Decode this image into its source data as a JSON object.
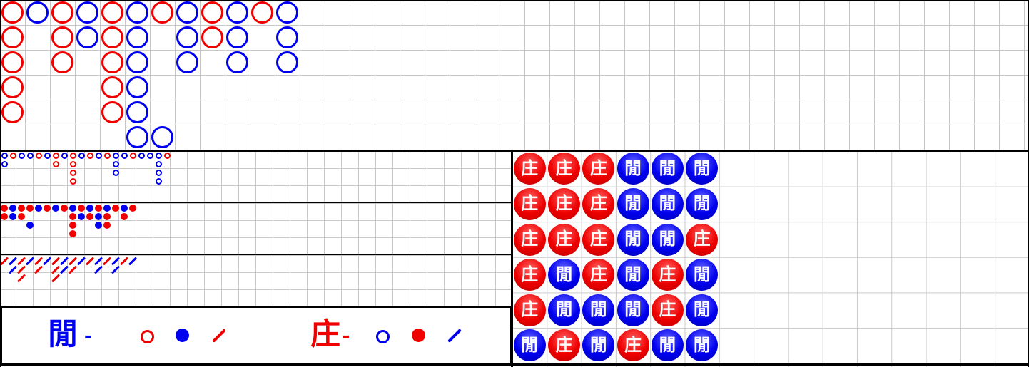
{
  "colors": {
    "red": "#f20000",
    "blue": "#0000f0",
    "bead_red_light": "#ff6060",
    "bead_red": "#ee0000",
    "bead_red_dark": "#bb0000",
    "bead_blue_light": "#6060ff",
    "bead_blue": "#0000ee",
    "bead_blue_dark": "#0000b0",
    "grid_line": "#c9c9c9",
    "border": "#000000",
    "background": "#ffffff"
  },
  "legend": {
    "player_label": "閒",
    "player_dash": "-",
    "banker_label": "庄",
    "banker_dash": "-"
  },
  "bead_plate": {
    "banker_char": "庄",
    "player_char": "閒",
    "rows": [
      [
        "B",
        "B",
        "B",
        "P",
        "P",
        "P"
      ],
      [
        "B",
        "B",
        "B",
        "P",
        "P",
        "P"
      ],
      [
        "B",
        "B",
        "B",
        "P",
        "P",
        "B"
      ],
      [
        "B",
        "P",
        "B",
        "P",
        "B",
        "P"
      ],
      [
        "B",
        "P",
        "P",
        "P",
        "B",
        "P"
      ],
      [
        "P",
        "B",
        "P",
        "B",
        "P",
        "P"
      ]
    ]
  },
  "big_road": {
    "cells": [
      [
        1,
        1,
        "R"
      ],
      [
        2,
        1,
        "R"
      ],
      [
        3,
        1,
        "R"
      ],
      [
        4,
        1,
        "R"
      ],
      [
        5,
        1,
        "R"
      ],
      [
        1,
        2,
        "B"
      ],
      [
        1,
        3,
        "R"
      ],
      [
        2,
        3,
        "R"
      ],
      [
        3,
        3,
        "R"
      ],
      [
        1,
        4,
        "B"
      ],
      [
        2,
        4,
        "B"
      ],
      [
        1,
        5,
        "R"
      ],
      [
        2,
        5,
        "R"
      ],
      [
        3,
        5,
        "R"
      ],
      [
        4,
        5,
        "R"
      ],
      [
        5,
        5,
        "R"
      ],
      [
        1,
        6,
        "B"
      ],
      [
        2,
        6,
        "B"
      ],
      [
        3,
        6,
        "B"
      ],
      [
        4,
        6,
        "B"
      ],
      [
        5,
        6,
        "B"
      ],
      [
        6,
        6,
        "B"
      ],
      [
        6,
        7,
        "B"
      ],
      [
        1,
        7,
        "R"
      ],
      [
        1,
        8,
        "B"
      ],
      [
        2,
        8,
        "B"
      ],
      [
        3,
        8,
        "B"
      ],
      [
        1,
        9,
        "R"
      ],
      [
        2,
        9,
        "R"
      ],
      [
        1,
        10,
        "B"
      ],
      [
        2,
        10,
        "B"
      ],
      [
        3,
        10,
        "B"
      ],
      [
        1,
        11,
        "R"
      ],
      [
        1,
        12,
        "B"
      ],
      [
        2,
        12,
        "B"
      ],
      [
        3,
        12,
        "B"
      ]
    ]
  },
  "big_eye_road": {
    "cells": [
      [
        1,
        1,
        "B"
      ],
      [
        2,
        1,
        "B"
      ],
      [
        1,
        2,
        "R"
      ],
      [
        1,
        3,
        "B"
      ],
      [
        1,
        4,
        "B"
      ],
      [
        1,
        5,
        "R"
      ],
      [
        1,
        6,
        "B"
      ],
      [
        1,
        7,
        "R"
      ],
      [
        2,
        7,
        "R"
      ],
      [
        1,
        8,
        "B"
      ],
      [
        1,
        9,
        "R"
      ],
      [
        2,
        9,
        "R"
      ],
      [
        3,
        9,
        "R"
      ],
      [
        4,
        9,
        "R"
      ],
      [
        1,
        10,
        "B"
      ],
      [
        1,
        11,
        "R"
      ],
      [
        1,
        12,
        "B"
      ],
      [
        1,
        13,
        "R"
      ],
      [
        1,
        14,
        "B"
      ],
      [
        2,
        14,
        "B"
      ],
      [
        3,
        14,
        "B"
      ],
      [
        1,
        15,
        "B"
      ],
      [
        1,
        16,
        "R"
      ],
      [
        1,
        17,
        "B"
      ],
      [
        1,
        18,
        "B"
      ],
      [
        1,
        19,
        "B"
      ],
      [
        2,
        19,
        "B"
      ],
      [
        3,
        19,
        "B"
      ],
      [
        4,
        19,
        "B"
      ],
      [
        1,
        20,
        "R"
      ]
    ]
  },
  "small_road": {
    "cells": [
      [
        1,
        1,
        "R"
      ],
      [
        2,
        1,
        "R"
      ],
      [
        1,
        2,
        "B"
      ],
      [
        2,
        2,
        "B"
      ],
      [
        1,
        3,
        "R"
      ],
      [
        2,
        3,
        "R"
      ],
      [
        1,
        4,
        "R"
      ],
      [
        3,
        4,
        "B"
      ],
      [
        1,
        5,
        "B"
      ],
      [
        1,
        6,
        "R"
      ],
      [
        1,
        7,
        "B"
      ],
      [
        1,
        8,
        "R"
      ],
      [
        1,
        9,
        "B"
      ],
      [
        2,
        9,
        "R"
      ],
      [
        3,
        9,
        "R"
      ],
      [
        4,
        9,
        "R"
      ],
      [
        1,
        10,
        "R"
      ],
      [
        2,
        10,
        "B"
      ],
      [
        1,
        11,
        "B"
      ],
      [
        2,
        11,
        "R"
      ],
      [
        1,
        12,
        "R"
      ],
      [
        2,
        12,
        "B"
      ],
      [
        3,
        12,
        "B"
      ],
      [
        1,
        13,
        "B"
      ],
      [
        2,
        13,
        "R"
      ],
      [
        3,
        13,
        "R"
      ],
      [
        1,
        14,
        "R"
      ],
      [
        1,
        15,
        "B"
      ],
      [
        2,
        15,
        "R"
      ],
      [
        1,
        16,
        "R"
      ]
    ]
  },
  "cockroach_road": {
    "cells": [
      [
        1,
        1,
        "R"
      ],
      [
        1,
        2,
        "B"
      ],
      [
        2,
        2,
        "B"
      ],
      [
        1,
        3,
        "R"
      ],
      [
        2,
        3,
        "R"
      ],
      [
        3,
        3,
        "R"
      ],
      [
        1,
        4,
        "B"
      ],
      [
        1,
        5,
        "R"
      ],
      [
        2,
        5,
        "R"
      ],
      [
        1,
        6,
        "B"
      ],
      [
        1,
        7,
        "R"
      ],
      [
        2,
        7,
        "R"
      ],
      [
        3,
        7,
        "R"
      ],
      [
        1,
        8,
        "B"
      ],
      [
        2,
        8,
        "B"
      ],
      [
        1,
        9,
        "R"
      ],
      [
        2,
        9,
        "R"
      ],
      [
        1,
        10,
        "B"
      ],
      [
        1,
        11,
        "R"
      ],
      [
        1,
        12,
        "B"
      ],
      [
        2,
        12,
        "B"
      ],
      [
        1,
        13,
        "R"
      ],
      [
        1,
        14,
        "B"
      ],
      [
        2,
        14,
        "B"
      ],
      [
        1,
        15,
        "R"
      ],
      [
        1,
        16,
        "B"
      ]
    ]
  }
}
